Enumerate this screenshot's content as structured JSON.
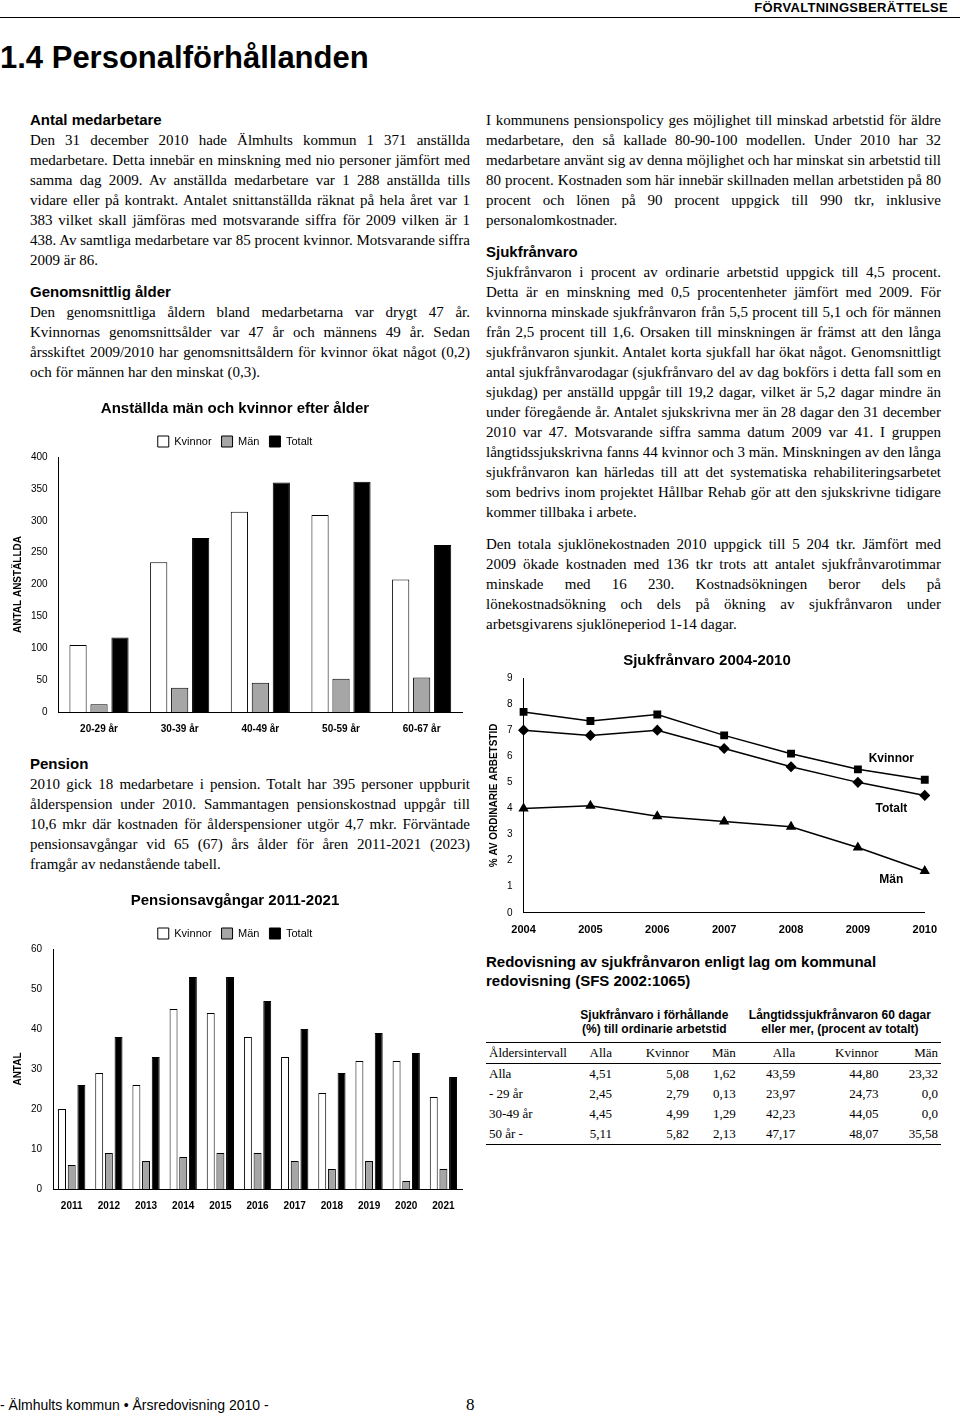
{
  "document": {
    "header": "FÖRVALTNINGSBERÄTTELSE",
    "title": "1.4 Personalförhållanden",
    "sections": [
      {
        "heading": "Antal medarbetare",
        "paragraphs": [
          "Den 31 december 2010 hade Älmhults kommun 1 371 anställda medarbetare. Detta innebär en minskning med nio personer jämfört med samma dag 2009. Av anställda medarbetare var 1 288 anställda tills vidare eller på kontrakt. Antalet snittanställda räknat på hela året var 1 383 vilket skall jämföras med motsvarande siffra för 2009 vilken är 1 438. Av samtliga medarbetare var 85 procent kvinnor. Motsvarande siffra 2009 är 86."
        ]
      },
      {
        "heading": "Genomsnittlig ålder",
        "paragraphs": [
          "Den genomsnittliga åldern bland medarbetarna var drygt 47 år. Kvinnornas genomsnittsålder var 47 år och männens 49 år. Sedan årsskiftet 2009/2010 har genomsnittsåldern för kvinnor ökat något (0,2) och för männen har den minskat (0,3)."
        ]
      },
      {
        "heading": "Pension",
        "paragraphs": [
          "2010 gick 18 medarbetare i pension. Totalt har 395 personer uppburit ålderspension under 2010. Sammantagen pensionskostnad uppgår till 10,6 mkr där kostnaden för ålderspensioner utgör 4,7 mkr. Förväntade pensionsavgångar vid 65 (67) års ålder för åren 2011-2021 (2023) framgår av nedanstående tabell."
        ]
      },
      {
        "paragraphs": [
          "I kommunens pensionspolicy ges möjlighet till minskad arbetstid för äldre medarbetare, den så kallade 80-90-100 modellen. Under 2010 har 32 medarbetare använt sig av denna möjlighet och har minskat sin arbetstid till 80 procent. Kostnaden som här innebär skillnaden mellan arbetstiden på 80 procent och lönen på 90 procent uppgick till 990 tkr, inklusive personalomkostnader."
        ]
      },
      {
        "heading": "Sjukfrånvaro",
        "paragraphs": [
          "Sjukfrånvaron i procent av ordinarie arbetstid uppgick till 4,5 procent. Detta är en minskning med 0,5 procentenheter jämfört med 2009. För kvinnorna minskade sjukfrånvaron från 5,5 procent till 5,1 och för männen från 2,5 procent till 1,6. Orsaken till minskningen är främst att den långa sjukfrånvaron sjunkit. Antalet korta sjukfall har ökat något. Genomsnittligt antal sjukfrånvarodagar (sjukfrånvaro del av dag bokförs i detta fall som en sjukdag) per anställd uppgår till 19,2 dagar, vilket är 5,2 dagar mindre än under föregående år. Antalet sjukskrivna mer än 28 dagar den 31 december 2010 var 47. Motsvarande siffra samma datum 2009 var 41. I gruppen långtidssjukskrivna fanns 44 kvinnor och 3 män. Minskningen av den långa sjukfrånvaron kan härledas till att det systematiska rehabiliteringsarbetet som bedrivs inom projektet Hållbar Rehab gör att den sjukskrivne tidigare kommer tillbaka i arbete."
        ]
      },
      {
        "paragraphs": [
          "Den totala sjuklönekostnaden 2010 uppgick till 5 204 tkr. Jämfört med 2009 ökade kostnaden med 136 tkr trots att antalet sjukfrånvarotimmar minskade med 16 230. Kostnadsökningen beror dels på lönekostnadsökning och dels på ökning av sjukfrånvaron under arbetsgivarens sjuklöneperiod 1-14 dagar."
        ]
      }
    ],
    "table": {
      "heading": "Redovisning av sjukfrånvaron enligt lag om kommunal redovisning (SFS 2002:1065)",
      "group_headers": [
        "Sjukfrånvaro i förhållande (%) till ordinarie arbetstid",
        "Långtidssjukfrånvaron 60 dagar eller mer, (procent av totalt)"
      ],
      "columns": [
        "Åldersintervall",
        "Alla",
        "Kvinnor",
        "Män",
        "Alla",
        "Kvinnor",
        "Män"
      ],
      "rows": [
        [
          "Alla",
          "4,51",
          "5,08",
          "1,62",
          "43,59",
          "44,80",
          "23,32"
        ],
        [
          "- 29 år",
          "2,45",
          "2,79",
          "0,13",
          "23,97",
          "24,73",
          "0,0"
        ],
        [
          "30-49 år",
          "4,45",
          "4,99",
          "1,29",
          "42,23",
          "44,05",
          "0,0"
        ],
        [
          "50 år -",
          "5,11",
          "5,82",
          "2,13",
          "47,17",
          "48,07",
          "35,58"
        ]
      ]
    },
    "footer": "- Älmhults kommun • Årsredovisning 2010 -",
    "page_number": "8"
  },
  "chart_data": [
    {
      "type": "bar",
      "title": "Anställda män och kvinnor efter ålder",
      "y_label": "ANTAL ANSTÄLLDA",
      "categories": [
        "20-29 år",
        "30-39 år",
        "40-49 år",
        "50-59 år",
        "60-67 år"
      ],
      "series": [
        {
          "name": "Kvinnor",
          "color": "#ffffff",
          "values": [
            105,
            235,
            314,
            309,
            208
          ]
        },
        {
          "name": "Män",
          "color": "#a6a6a6",
          "values": [
            12,
            38,
            46,
            52,
            54
          ]
        },
        {
          "name": "Totalt",
          "color": "#000000",
          "values": [
            117,
            273,
            360,
            361,
            262
          ]
        }
      ],
      "ylim": [
        0,
        400
      ],
      "yticks": [
        0,
        50,
        100,
        150,
        200,
        250,
        300,
        350,
        400
      ],
      "grid": false,
      "legend": "top"
    },
    {
      "type": "bar",
      "title": "Pensionsavgångar 2011-2021",
      "y_label": "ANTAL",
      "categories": [
        "2011",
        "2012",
        "2013",
        "2014",
        "2015",
        "2016",
        "2017",
        "2018",
        "2019",
        "2020",
        "2021"
      ],
      "series": [
        {
          "name": "Kvinnor",
          "color": "#ffffff",
          "values": [
            20,
            29,
            26,
            45,
            44,
            38,
            33,
            24,
            32,
            32,
            23
          ]
        },
        {
          "name": "Män",
          "color": "#a6a6a6",
          "values": [
            6,
            9,
            7,
            8,
            9,
            9,
            7,
            5,
            7,
            2,
            5
          ]
        },
        {
          "name": "Totalt",
          "color": "#000000",
          "values": [
            26,
            38,
            33,
            53,
            53,
            47,
            40,
            29,
            39,
            34,
            28
          ]
        }
      ],
      "ylim": [
        0,
        60
      ],
      "yticks": [
        0,
        10,
        20,
        30,
        40,
        50,
        60
      ],
      "grid": false,
      "legend": "top"
    },
    {
      "type": "line",
      "title": "Sjukfrånvaro 2004-2010",
      "y_label": "% AV ORDINARIE ARBETSTID",
      "categories": [
        "2004",
        "2005",
        "2006",
        "2007",
        "2008",
        "2009",
        "2010"
      ],
      "series": [
        {
          "name": "Kvinnor",
          "color": "#000000",
          "marker": "square",
          "values": [
            7.7,
            7.35,
            7.6,
            6.8,
            6.1,
            5.5,
            5.1
          ]
        },
        {
          "name": "Totalt",
          "color": "#000000",
          "marker": "diamond",
          "values": [
            7.0,
            6.8,
            7.0,
            6.3,
            5.6,
            5.0,
            4.5
          ]
        },
        {
          "name": "Män",
          "color": "#000000",
          "marker": "triangle",
          "values": [
            4.0,
            4.1,
            3.7,
            3.5,
            3.3,
            2.5,
            1.6
          ]
        }
      ],
      "ylim": [
        0,
        9
      ],
      "yticks": [
        0,
        1,
        2,
        3,
        4,
        5,
        6,
        7,
        8,
        9
      ],
      "grid": false
    }
  ]
}
